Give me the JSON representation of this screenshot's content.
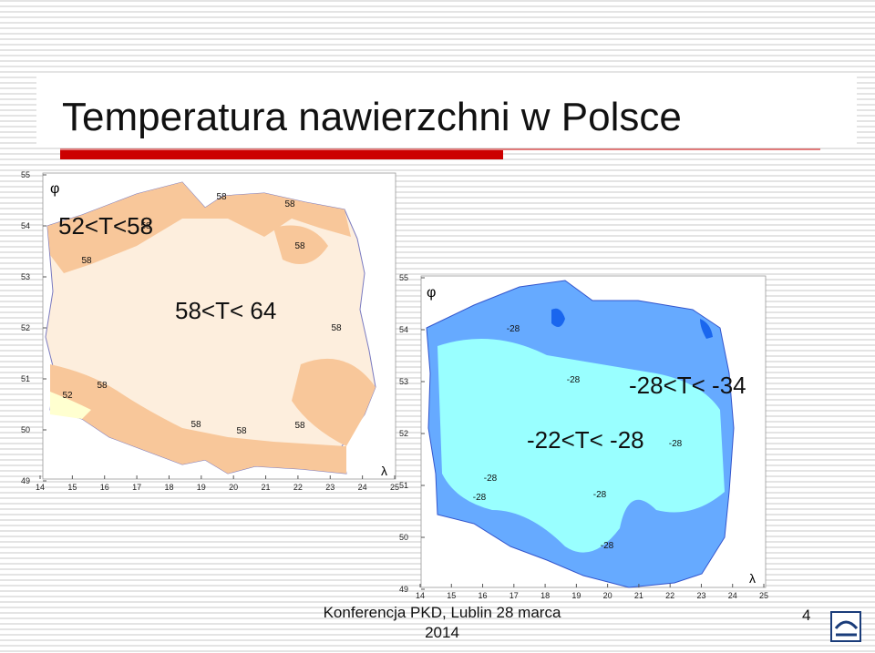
{
  "header": {
    "title": "Temperatura nawierzchni w Polsce"
  },
  "map1": {
    "phi": "φ",
    "lambda": "λ",
    "yticks": [
      "55",
      "54",
      "53",
      "52",
      "51",
      "50",
      "49"
    ],
    "xticks": [
      "14",
      "15",
      "16",
      "17",
      "18",
      "19",
      "20",
      "21",
      "22",
      "23",
      "24",
      "25"
    ],
    "region_labels": [
      "52<T<58",
      "58<T< 64"
    ],
    "contour_labels": [
      "58",
      "58",
      "58",
      "58",
      "58",
      "58",
      "58",
      "52",
      "58",
      "58",
      "58"
    ]
  },
  "map2": {
    "phi": "φ",
    "lambda": "λ",
    "yticks": [
      "55",
      "54",
      "53",
      "52",
      "51",
      "50",
      "49"
    ],
    "xticks": [
      "14",
      "15",
      "16",
      "17",
      "18",
      "19",
      "20",
      "21",
      "22",
      "23",
      "24",
      "25"
    ],
    "region_labels": [
      "-28<T< -34",
      "-22<T< -28"
    ],
    "contour_labels": [
      "-28",
      "-28",
      "-28",
      "-28",
      "-28",
      "-28",
      "-28"
    ]
  },
  "footer": {
    "text": "Konferencja PKD, Lublin 28 marca 2014",
    "page": "4"
  }
}
